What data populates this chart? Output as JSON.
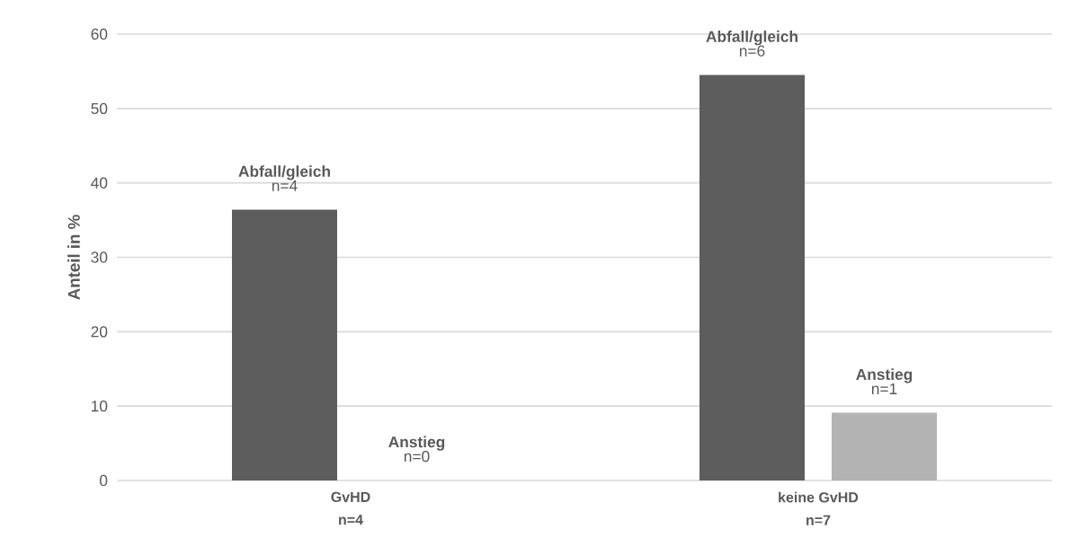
{
  "chart_data": {
    "type": "bar",
    "ylabel": "Anteil in %",
    "categories": [
      "GvHD\nn=4",
      "keine GvHD\nn=7"
    ],
    "series": [
      {
        "name": "Abfall/gleich",
        "color": "#5d5d5d",
        "values": [
          36.4,
          54.5
        ]
      },
      {
        "name": "Anstieg",
        "color": "#b3b3b3",
        "values": [
          0,
          9.1
        ]
      }
    ],
    "annotations": [
      "n=4",
      "n=6",
      "n=0",
      "n=1"
    ],
    "ylim": [
      0,
      60
    ],
    "yticks": [
      0,
      10,
      20,
      30,
      40,
      50,
      60
    ],
    "grid": "y",
    "legend": false
  }
}
